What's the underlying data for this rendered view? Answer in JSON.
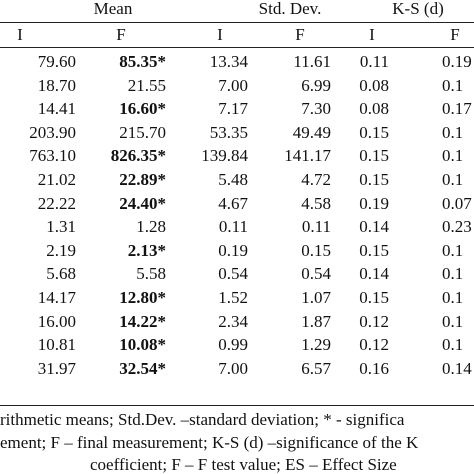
{
  "table": {
    "group_headers": [
      "Mean",
      "Std. Dev.",
      "K-S (d)"
    ],
    "sub_headers": [
      "I",
      "F",
      "I",
      "F",
      "I",
      "F"
    ],
    "rows": [
      [
        "79.60",
        "85.35*",
        "13.34",
        "11.61",
        "0.11",
        "0.19"
      ],
      [
        "18.70",
        "21.55",
        "7.00",
        "6.99",
        "0.08",
        "0.1"
      ],
      [
        "14.41",
        "16.60*",
        "7.17",
        "7.30",
        "0.08",
        "0.17"
      ],
      [
        "203.90",
        "215.70",
        "53.35",
        "49.49",
        "0.15",
        "0.1"
      ],
      [
        "763.10",
        "826.35*",
        "139.84",
        "141.17",
        "0.15",
        "0.1"
      ],
      [
        "21.02",
        "22.89*",
        "5.48",
        "4.72",
        "0.15",
        "0.1"
      ],
      [
        "22.22",
        "24.40*",
        "4.67",
        "4.58",
        "0.19",
        "0.07"
      ],
      [
        "1.31",
        "1.28",
        "0.11",
        "0.11",
        "0.14",
        "0.23"
      ],
      [
        "2.19",
        "2.13*",
        "0.19",
        "0.15",
        "0.15",
        "0.1"
      ],
      [
        "5.68",
        "5.58",
        "0.54",
        "0.54",
        "0.14",
        "0.1"
      ],
      [
        "14.17",
        "12.80*",
        "1.52",
        "1.07",
        "0.15",
        "0.1"
      ],
      [
        "16.00",
        "14.22*",
        "2.34",
        "1.87",
        "0.12",
        "0.1"
      ],
      [
        "10.81",
        "10.08*",
        "0.99",
        "1.29",
        "0.12",
        "0.1"
      ],
      [
        "31.97",
        "32.54*",
        "7.00",
        "6.57",
        "0.16",
        "0.14"
      ]
    ],
    "footnotes": [
      "rithmetic means; Std.Dev. –standard deviation; * - significa",
      "ement; F – final measurement; K-S (d) –significance of the K",
      "coefficient; F – F test value; ES – Effect Size"
    ]
  }
}
